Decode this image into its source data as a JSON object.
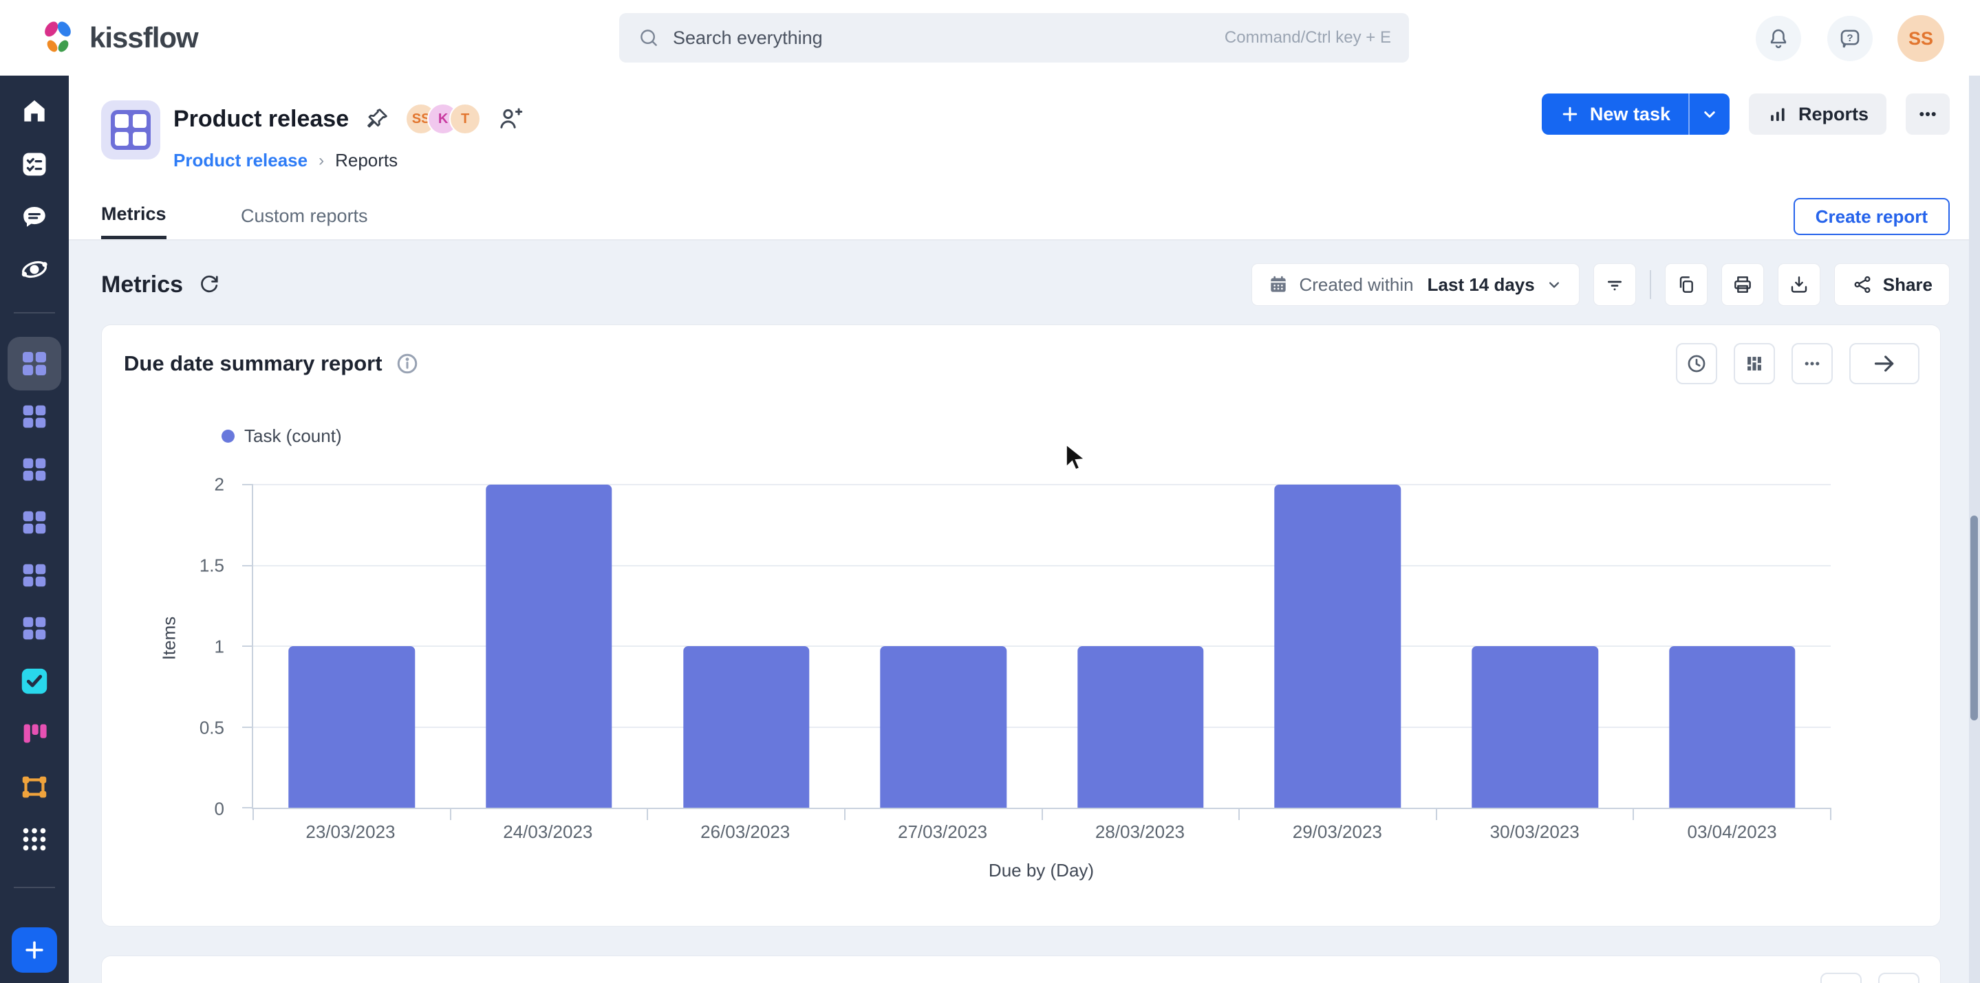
{
  "topbar": {
    "brand": "kissflow",
    "search": {
      "placeholder": "Search everything",
      "shortcut": "Command/Ctrl key + E"
    },
    "avatar_initials": "SS"
  },
  "sidebar": {
    "icons": [
      "home-icon",
      "tasks-checklist-icon",
      "chat-icon",
      "orbit-tracker-icon",
      "board-grid-icon-active",
      "board-grid-icon",
      "board-grid-icon",
      "board-grid-icon",
      "board-grid-icon",
      "board-grid-icon",
      "check-app-icon",
      "kanban-app-icon",
      "workflow-app-icon",
      "apps-dots-grid-icon",
      "add-plus-button"
    ],
    "accent_colors": {
      "grid": "#8a93e9",
      "check_app": "#29d8ec",
      "kanban_app": "#e751b3",
      "workflow_app": "#f0a33c",
      "plus_bg": "#1667f2"
    }
  },
  "header": {
    "title": "Product release",
    "members": [
      "SS",
      "K",
      "T"
    ],
    "breadcrumb": [
      "Product release",
      "Reports"
    ],
    "new_task_label": "New task",
    "reports_label": "Reports"
  },
  "tabs": {
    "items": [
      "Metrics",
      "Custom reports"
    ],
    "active": "Metrics",
    "create_report_label": "Create report"
  },
  "metrics_toolbar": {
    "heading": "Metrics",
    "range_label": "Created within",
    "range_value": "Last 14 days",
    "share_label": "Share",
    "icons": [
      "refresh-icon",
      "calendar-icon",
      "chevron-down-icon",
      "filter-icon",
      "copy-icon",
      "print-icon",
      "download-icon",
      "share-icon"
    ]
  },
  "report_card": {
    "title": "Due date summary report",
    "icons": [
      "info-icon",
      "clock-history-icon",
      "column-chart-icon",
      "ellipsis-icon",
      "arrow-right-icon"
    ]
  },
  "chart_data": {
    "type": "bar",
    "title": "Due date summary report",
    "series_name": "Task (count)",
    "categories": [
      "23/03/2023",
      "24/03/2023",
      "26/03/2023",
      "27/03/2023",
      "28/03/2023",
      "29/03/2023",
      "30/03/2023",
      "03/04/2023"
    ],
    "values": [
      1,
      2,
      1,
      1,
      1,
      2,
      1,
      1
    ],
    "xlabel": "Due by (Day)",
    "ylabel": "Items",
    "ylim": [
      0,
      2
    ],
    "yticks": [
      0,
      0.5,
      1,
      1.5,
      2
    ],
    "bar_color": "#6878dc",
    "grid": true,
    "legend_position": "top-left"
  },
  "colors": {
    "primary_blue": "#1667f2",
    "link_blue": "#2e7cf6",
    "outline_blue": "#2563eb",
    "sidebar_bg": "#232e44",
    "content_bg": "#edf1f7",
    "bar_purple": "#6878dc"
  }
}
